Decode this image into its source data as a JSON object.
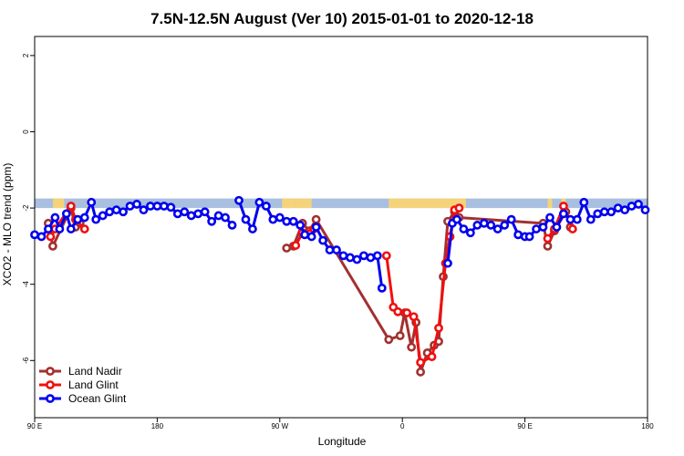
{
  "chart_data": {
    "type": "line",
    "title": "7.5N-12.5N August (Ver 10)   2015-01-01 to 2020-12-18",
    "xlabel": "Longitude",
    "ylabel": "XCO2 - MLO trend (ppm)",
    "xlim": [
      -90,
      180
    ],
    "ylim": [
      -7.5,
      2.5
    ],
    "x_ticks": [
      {
        "value": -90,
        "label": "90 E"
      },
      {
        "value": -36,
        "label": "180"
      },
      {
        "value": 18,
        "label": "90 W"
      },
      {
        "value": 72,
        "label": "0"
      },
      {
        "value": 126,
        "label": "90 E"
      },
      {
        "value": 180,
        "label": "180"
      }
    ],
    "y_ticks": [
      {
        "value": 2,
        "label": "2"
      },
      {
        "value": 0,
        "label": "0"
      },
      {
        "value": -2,
        "label": "-2"
      },
      {
        "value": -4,
        "label": "-4"
      },
      {
        "value": -6,
        "label": "-6"
      }
    ],
    "land_band": {
      "y_top": -1.75,
      "y_bottom": -2.0,
      "ocean_color": "#a8bfe0",
      "land_color": "#f5d37a",
      "land_segments": [
        [
          -82,
          -77
        ],
        [
          -67,
          -64
        ],
        [
          19,
          25
        ],
        [
          25,
          32
        ],
        [
          66,
          100
        ],
        [
          136,
          138
        ],
        [
          142,
          144
        ]
      ]
    },
    "legend_position": "bottom-left",
    "series": [
      {
        "name": "Land Nadir",
        "color": "#a33030",
        "points": [
          [
            -84,
            -2.4
          ],
          [
            -82,
            -3.0
          ],
          [
            -74,
            -2.0
          ],
          [
            -72,
            -2.5
          ],
          [
            -70,
            -2.4
          ],
          [
            21,
            -3.05
          ],
          [
            24,
            -3.0
          ],
          [
            28,
            -2.4
          ],
          [
            31,
            -2.6
          ],
          [
            34,
            -2.3
          ],
          [
            66,
            -5.45
          ],
          [
            71,
            -5.35
          ],
          [
            73,
            -4.75
          ],
          [
            76,
            -5.65
          ],
          [
            78,
            -5.0
          ],
          [
            80,
            -6.3
          ],
          [
            83,
            -5.8
          ],
          [
            86,
            -5.6
          ],
          [
            88,
            -5.5
          ],
          [
            90,
            -3.8
          ],
          [
            92,
            -2.35
          ],
          [
            95,
            -2.1
          ],
          [
            97,
            -2.25
          ],
          [
            134,
            -2.4
          ],
          [
            136,
            -3.0
          ],
          [
            139,
            -2.6
          ],
          [
            144,
            -2.1
          ],
          [
            146,
            -2.5
          ]
        ],
        "breaks_after": [
          4
        ]
      },
      {
        "name": "Land Glint",
        "color": "#f01010",
        "points": [
          [
            -83,
            -2.75
          ],
          [
            -81,
            -2.55
          ],
          [
            -74,
            -1.95
          ],
          [
            -72,
            -2.3
          ],
          [
            -68,
            -2.55
          ],
          [
            25,
            -2.98
          ],
          [
            28,
            -2.65
          ],
          [
            33,
            -2.55
          ],
          [
            65,
            -3.25
          ],
          [
            68,
            -4.6
          ],
          [
            70,
            -4.72
          ],
          [
            74,
            -4.75
          ],
          [
            77,
            -4.85
          ],
          [
            80,
            -6.05
          ],
          [
            85,
            -5.9
          ],
          [
            88,
            -5.15
          ],
          [
            91,
            -3.45
          ],
          [
            93,
            -2.75
          ],
          [
            95,
            -2.05
          ],
          [
            97,
            -2.0
          ],
          [
            136,
            -2.8
          ],
          [
            139,
            -2.55
          ],
          [
            143,
            -1.95
          ],
          [
            147,
            -2.55
          ]
        ],
        "breaks_after": [
          4,
          7,
          19
        ]
      },
      {
        "name": "Ocean Glint",
        "color": "#0000ee",
        "points": [
          [
            -90,
            -2.7
          ],
          [
            -87,
            -2.75
          ],
          [
            -84,
            -2.55
          ],
          [
            -81,
            -2.25
          ],
          [
            -79,
            -2.55
          ],
          [
            -76,
            -2.15
          ],
          [
            -74,
            -2.55
          ],
          [
            -71,
            -2.3
          ],
          [
            -68,
            -2.25
          ],
          [
            -65,
            -1.85
          ],
          [
            -63,
            -2.3
          ],
          [
            -60,
            -2.2
          ],
          [
            -57,
            -2.1
          ],
          [
            -54,
            -2.05
          ],
          [
            -51,
            -2.1
          ],
          [
            -48,
            -1.95
          ],
          [
            -45,
            -1.9
          ],
          [
            -42,
            -2.05
          ],
          [
            -39,
            -1.95
          ],
          [
            -36,
            -1.95
          ],
          [
            -33,
            -1.95
          ],
          [
            -30,
            -1.98
          ],
          [
            -27,
            -2.15
          ],
          [
            -24,
            -2.1
          ],
          [
            -21,
            -2.2
          ],
          [
            -18,
            -2.15
          ],
          [
            -15,
            -2.1
          ],
          [
            -12,
            -2.35
          ],
          [
            -9,
            -2.2
          ],
          [
            -6,
            -2.25
          ],
          [
            -3,
            -2.45
          ],
          [
            0,
            -1.8
          ],
          [
            3,
            -2.3
          ],
          [
            6,
            -2.55
          ],
          [
            9,
            -1.85
          ],
          [
            12,
            -1.95
          ],
          [
            15,
            -2.3
          ],
          [
            18,
            -2.25
          ],
          [
            21,
            -2.35
          ],
          [
            24,
            -2.35
          ],
          [
            27,
            -2.45
          ],
          [
            29,
            -2.7
          ],
          [
            32,
            -2.75
          ],
          [
            34,
            -2.5
          ],
          [
            37,
            -2.85
          ],
          [
            40,
            -3.1
          ],
          [
            43,
            -3.1
          ],
          [
            46,
            -3.25
          ],
          [
            49,
            -3.3
          ],
          [
            52,
            -3.35
          ],
          [
            55,
            -3.25
          ],
          [
            58,
            -3.3
          ],
          [
            61,
            -3.25
          ],
          [
            63,
            -4.1
          ],
          [
            92,
            -3.45
          ],
          [
            94,
            -2.4
          ],
          [
            96,
            -2.3
          ],
          [
            99,
            -2.55
          ],
          [
            102,
            -2.65
          ],
          [
            105,
            -2.45
          ],
          [
            108,
            -2.4
          ],
          [
            111,
            -2.45
          ],
          [
            114,
            -2.55
          ],
          [
            117,
            -2.45
          ],
          [
            120,
            -2.3
          ],
          [
            123,
            -2.7
          ],
          [
            126,
            -2.75
          ],
          [
            128,
            -2.75
          ],
          [
            131,
            -2.55
          ],
          [
            134,
            -2.5
          ],
          [
            137,
            -2.25
          ],
          [
            140,
            -2.5
          ],
          [
            143,
            -2.15
          ],
          [
            146,
            -2.3
          ],
          [
            149,
            -2.3
          ],
          [
            152,
            -1.85
          ],
          [
            155,
            -2.3
          ],
          [
            158,
            -2.15
          ],
          [
            161,
            -2.1
          ],
          [
            164,
            -2.1
          ],
          [
            167,
            -2.0
          ],
          [
            170,
            -2.05
          ],
          [
            173,
            -1.95
          ],
          [
            176,
            -1.9
          ],
          [
            179,
            -2.05
          ]
        ],
        "breaks_after": [
          30,
          53
        ]
      }
    ]
  }
}
